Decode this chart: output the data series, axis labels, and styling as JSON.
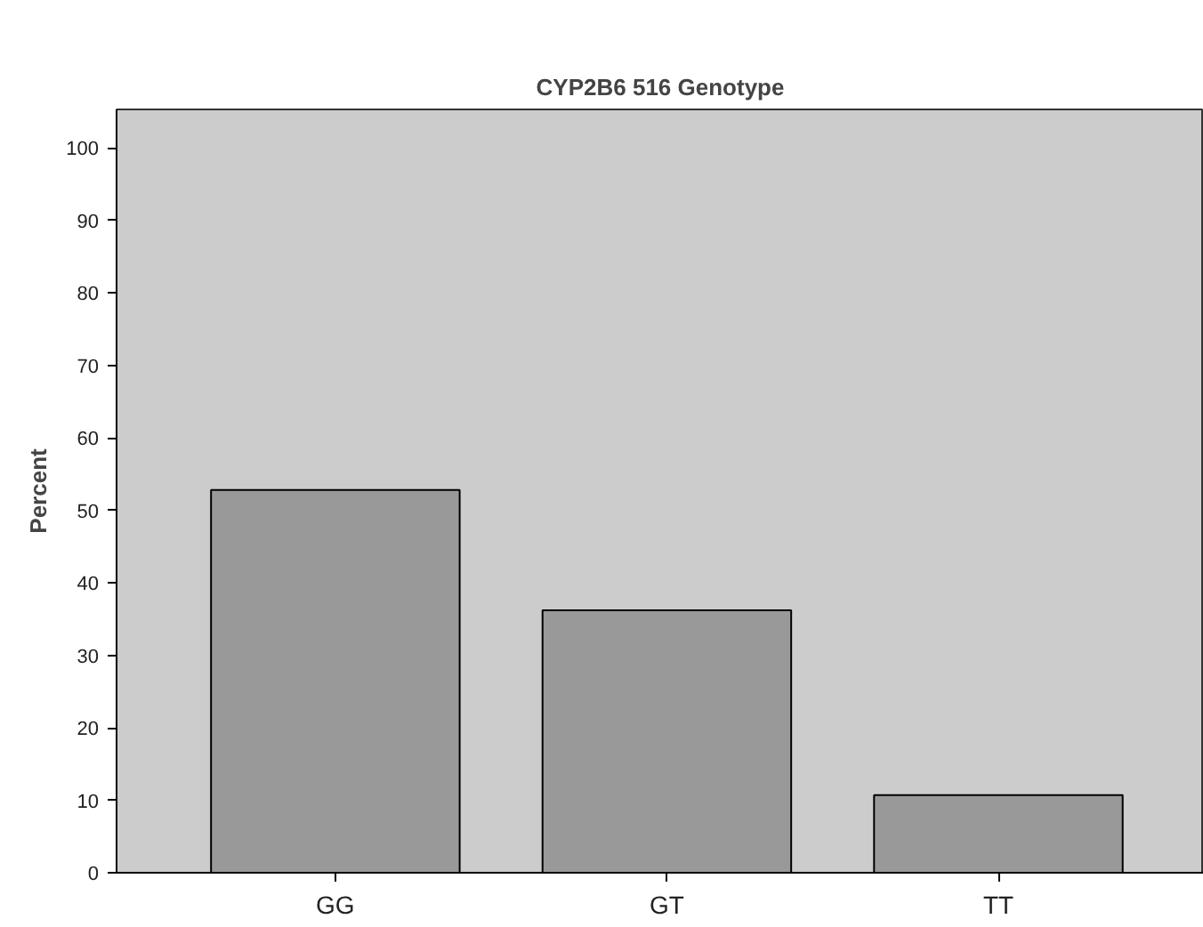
{
  "chart_data": {
    "type": "bar",
    "title": "CYP2B6 516 Genotype",
    "ylabel": "Percent",
    "categories": [
      "GG",
      "GT",
      "TT"
    ],
    "values": [
      52.8,
      36.2,
      10.7
    ],
    "color": "#999999",
    "ylim": [
      0,
      105.3
    ],
    "yticks": [
      0,
      10,
      20,
      30,
      40,
      50,
      60,
      70,
      80,
      90,
      100
    ],
    "grid": false
  }
}
